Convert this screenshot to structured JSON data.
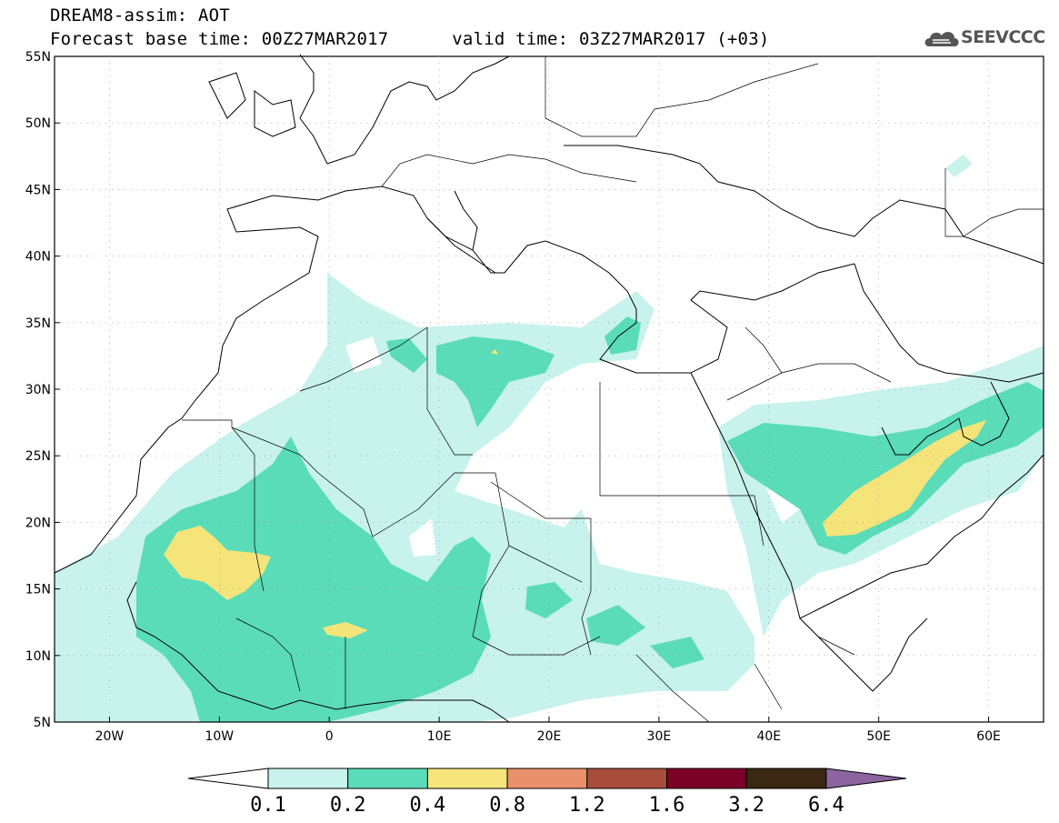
{
  "header": {
    "title": "DREAM8-assim: AOT",
    "base_time_label": "Forecast base time: 00Z27MAR2017",
    "valid_time_label": "valid time: 03Z27MAR2017 (+03)"
  },
  "logo": {
    "text": "SEEVCCC",
    "icon": "cloud-logo-icon"
  },
  "map": {
    "projection": "lat-lon",
    "lon_range": [
      -25,
      65
    ],
    "lat_range": [
      5,
      55
    ],
    "lat_labels": [
      "55N",
      "50N",
      "45N",
      "40N",
      "35N",
      "30N",
      "25N",
      "20N",
      "15N",
      "10N",
      "5N"
    ],
    "lat_values": [
      55,
      50,
      45,
      40,
      35,
      30,
      25,
      20,
      15,
      10,
      5
    ],
    "lon_labels": [
      "20W",
      "10W",
      "0",
      "10E",
      "20E",
      "30E",
      "40E",
      "50E",
      "60E"
    ],
    "lon_values": [
      -20,
      -10,
      0,
      10,
      20,
      30,
      40,
      50,
      60
    ],
    "grid": "dotted"
  },
  "colorbar": {
    "levels": [
      "0.1",
      "0.2",
      "0.4",
      "0.8",
      "1.2",
      "1.6",
      "3.2",
      "6.4"
    ],
    "colors": [
      "#ffffff",
      "#c8f2ec",
      "#5adcb8",
      "#f5e47a",
      "#e8906a",
      "#a84c3c",
      "#7a0028",
      "#3a2814",
      "#8c64a0"
    ]
  }
}
